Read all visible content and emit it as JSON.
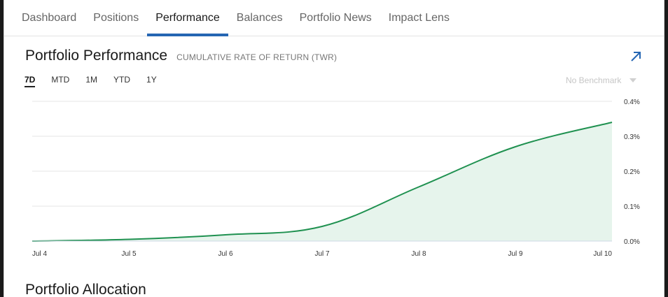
{
  "tabs": [
    "Dashboard",
    "Positions",
    "Performance",
    "Balances",
    "Portfolio News",
    "Impact Lens"
  ],
  "active_tab": 2,
  "header": {
    "title": "Portfolio Performance",
    "subtitle": "CUMULATIVE RATE OF RETURN (TWR)"
  },
  "ranges": [
    "7D",
    "MTD",
    "1M",
    "YTD",
    "1Y"
  ],
  "active_range": 0,
  "benchmark": {
    "label": "No Benchmark"
  },
  "colors": {
    "accent": "#2566b3",
    "line": "#1f9150",
    "fill": "#e6f4ec",
    "grid": "#e6e6e6"
  },
  "icons": {
    "expand": "arrow-up-right-icon",
    "dropdown": "caret-down-icon"
  },
  "chart_data": {
    "type": "area",
    "x": [
      "Jul 4",
      "Jul 5",
      "Jul 6",
      "Jul 7",
      "Jul 8",
      "Jul 9",
      "Jul 10"
    ],
    "series": [
      {
        "values": [
          0.0,
          0.005,
          0.018,
          0.042,
          0.155,
          0.27,
          0.34
        ]
      }
    ],
    "ylim": [
      0,
      0.4
    ],
    "yticks": [
      "0.0%",
      "0.1%",
      "0.2%",
      "0.3%",
      "0.4%"
    ],
    "grid": true
  },
  "section2": {
    "title": "Portfolio Allocation"
  }
}
